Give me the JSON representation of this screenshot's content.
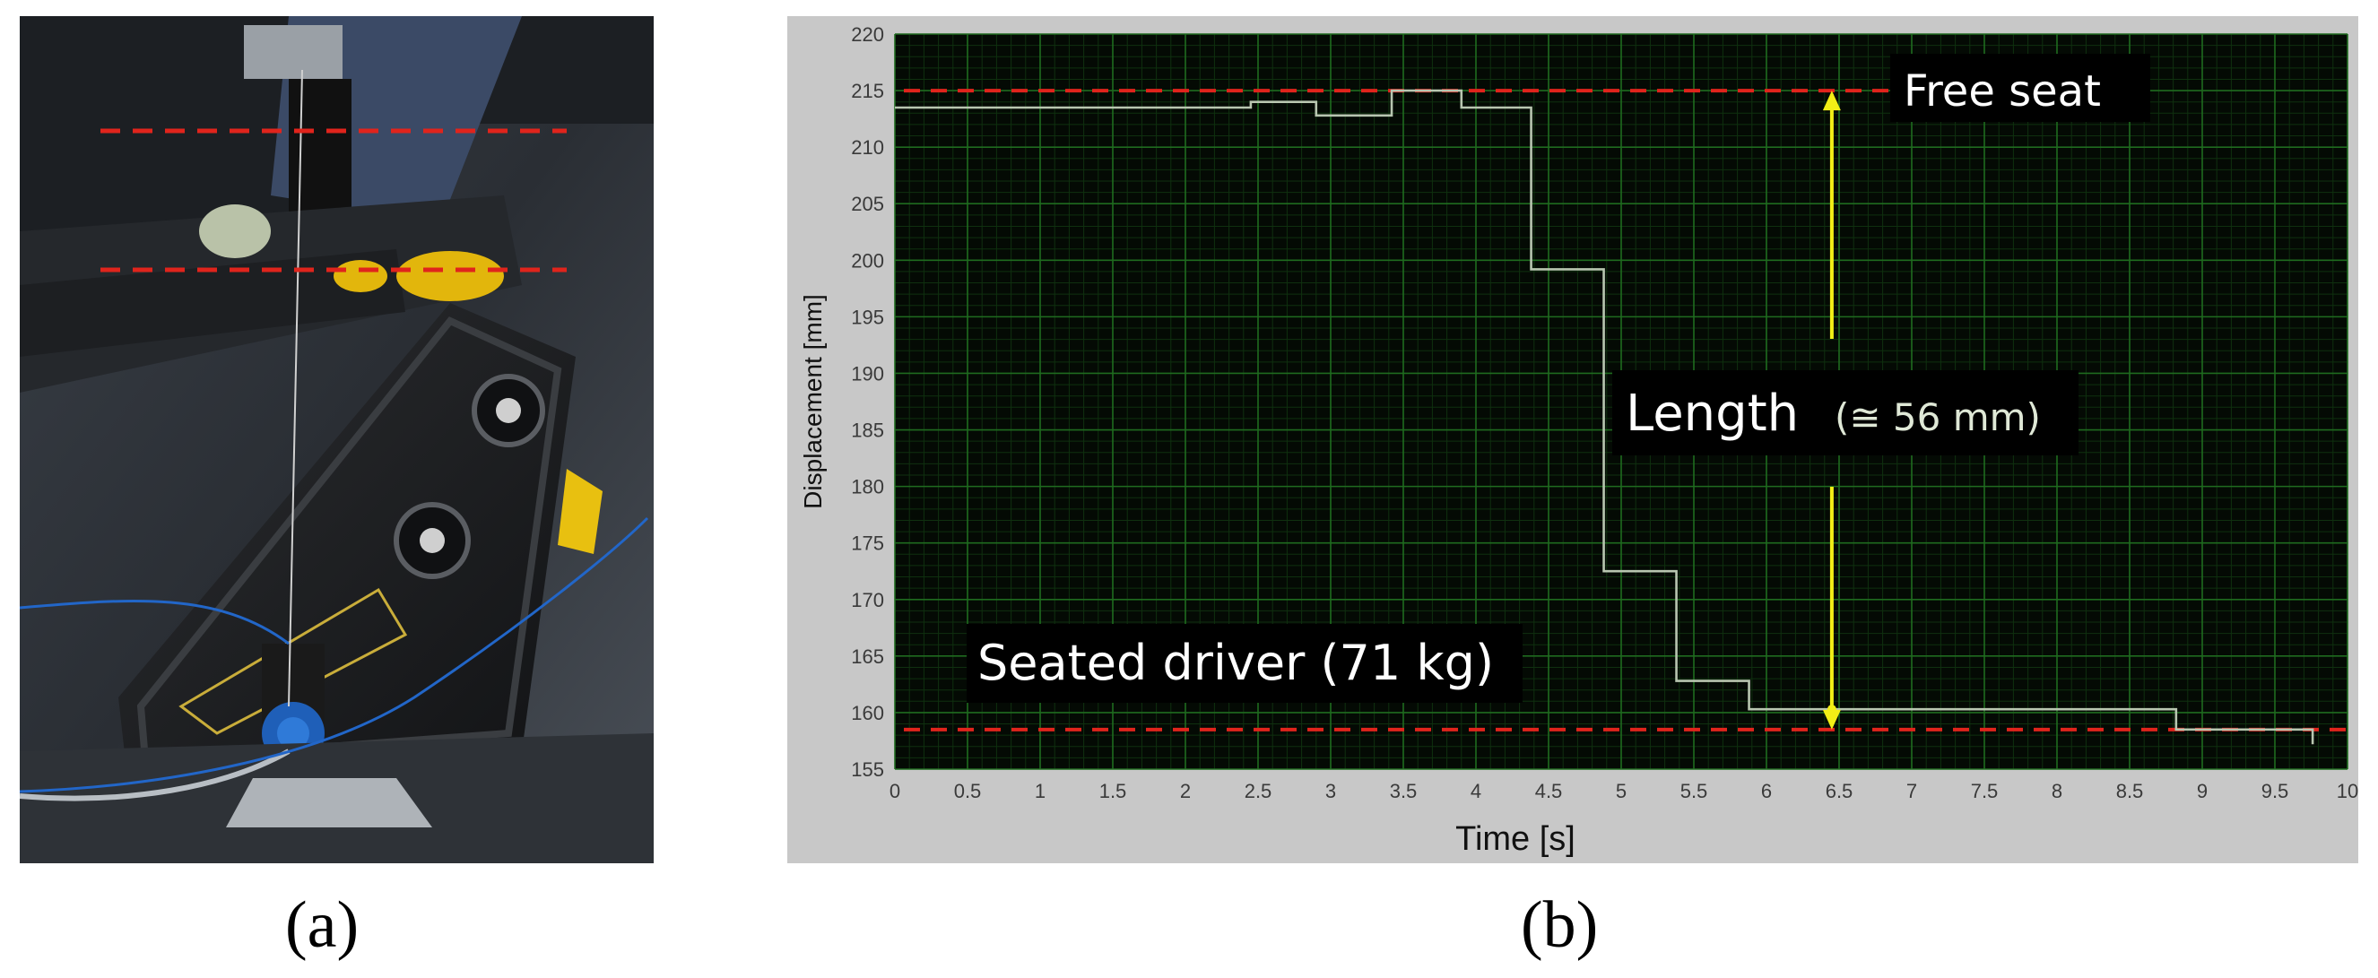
{
  "panels": {
    "a_label": "(a)",
    "b_label": "(b)"
  },
  "colors": {
    "plot_background": "#040a04",
    "grid_major": "#1f6b1f",
    "grid_minor": "#0f300f",
    "trace": "#b8c6b0",
    "reference_lines": "#e0241c",
    "length_arrow": "#f2ef16",
    "frame": "#c8c8c8"
  },
  "chart_data": {
    "type": "line",
    "xlabel": "Time [s]",
    "ylabel": "Displacement [mm]",
    "xlim": [
      0,
      10
    ],
    "ylim": [
      155,
      220
    ],
    "x_ticks": [
      "0",
      "0.5",
      "1",
      "1.5",
      "2",
      "2.5",
      "3",
      "3.5",
      "4",
      "4.5",
      "5",
      "5.5",
      "6",
      "6.5",
      "7",
      "7.5",
      "8",
      "8.5",
      "9",
      "9.5",
      "10"
    ],
    "y_ticks": [
      "220",
      "215",
      "210",
      "205",
      "200",
      "195",
      "190",
      "185",
      "180",
      "175",
      "170",
      "165",
      "160",
      "155"
    ],
    "grid": true,
    "series": [
      {
        "step": true,
        "x": [
          0,
          2.4,
          2.45,
          2.8,
          2.9,
          3.4,
          3.42,
          3.85,
          3.9,
          4.35,
          4.38,
          4.85,
          4.88,
          5.35,
          5.38,
          5.85,
          5.88,
          6.45,
          8.8,
          8.82,
          9.72,
          9.76
        ],
        "y": [
          213.5,
          213.5,
          214.0,
          214.0,
          212.8,
          212.8,
          215.0,
          215.0,
          213.5,
          213.5,
          199.2,
          199.2,
          172.5,
          172.5,
          162.8,
          162.8,
          160.3,
          160.3,
          160.3,
          158.5,
          158.5,
          157.2
        ]
      }
    ],
    "reference_lines": [
      {
        "y": 215,
        "x_end": 6.9
      },
      {
        "y": 158.5,
        "x_end": 10
      }
    ],
    "length_arrow": {
      "x": 6.45,
      "y_from": 158.5,
      "y_to": 215
    },
    "annotations": {
      "free_seat": "Free seat",
      "length": "Length",
      "length_value": "(≅ 56 mm)",
      "seated_driver": "Seated driver (71 kg)"
    }
  }
}
